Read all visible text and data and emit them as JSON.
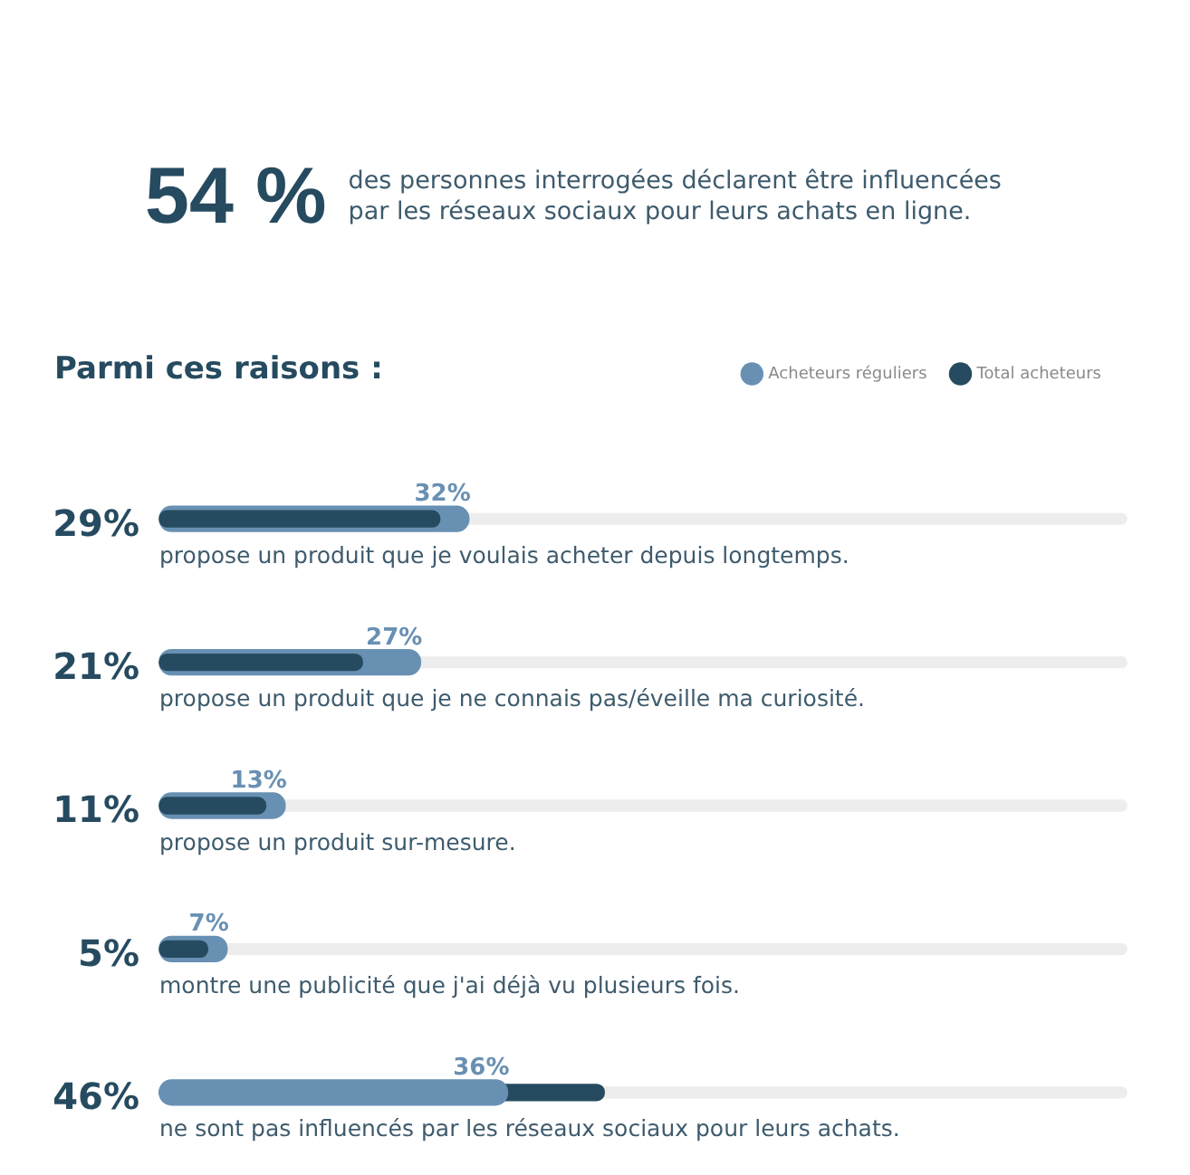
{
  "chart_data": {
    "type": "bar",
    "title": "54 %",
    "subtitle": "des personnes interrogées déclarent être influencées par les réseaux sociaux pour leurs achats en ligne.",
    "annotations": [
      "Parmi ces raisons :"
    ],
    "orientation": "horizontal",
    "categories": [
      "propose un produit que je voulais acheter depuis longtemps.",
      "propose un produit que je ne connais pas/éveille ma curiosité.",
      "propose un produit sur-mesure.",
      "montre une publicité que j'ai déjà vu plusieurs fois.",
      "ne sont pas influencés par les réseaux sociaux pour leurs achats."
    ],
    "series": [
      {
        "name": "Acheteurs réguliers",
        "color": "#6890b3",
        "values": [
          32,
          27,
          13,
          7,
          36
        ],
        "value_labels": [
          "32%",
          "27%",
          "13%",
          "7%",
          "36%"
        ]
      },
      {
        "name": "Total acheteurs",
        "color": "#264b60",
        "values": [
          29,
          21,
          11,
          5,
          46
        ],
        "value_labels": [
          "29%",
          "21%",
          "11%",
          "5%",
          "46%"
        ]
      },
      {
        "color": "#ededed",
        "values": [
          100,
          100,
          100,
          100,
          100
        ]
      }
    ],
    "legend": "top right"
  }
}
